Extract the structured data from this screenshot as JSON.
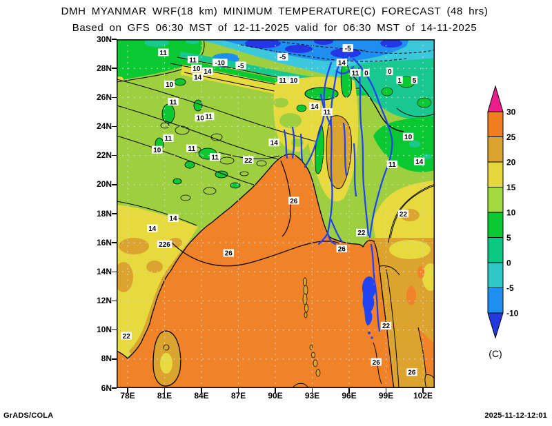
{
  "header": {
    "title": "DMH MYANMAR WRF(18 km) MINIMUM TEMPERATURE(C) FORECAST (48 hrs)",
    "subtitle": "Based on GFS 06:30 MST of 12-11-2025 valid for 06:30 MST of 14-11-2025"
  },
  "footer": {
    "credit": "GrADS/COLA",
    "timestamp": "2025-11-12-12:01"
  },
  "chart_data": {
    "type": "heatmap",
    "title": "DMH MYANMAR WRF(18 km) MINIMUM TEMPERATURE(C) FORECAST (48 hrs)",
    "subtitle": "Based on GFS 06:30 MST of 12-11-2025 valid for 06:30 MST of 14-11-2025",
    "units": "C",
    "grid": {
      "style": "dotted",
      "lon_step_deg": 3,
      "lat_step_deg": 2
    },
    "x_axis": {
      "ticks": [
        "78E",
        "81E",
        "84E",
        "87E",
        "90E",
        "93E",
        "96E",
        "99E",
        "102E"
      ],
      "range_lon": [
        77.1,
        103.3
      ]
    },
    "y_axis": {
      "ticks": [
        "30N",
        "28N",
        "26N",
        "24N",
        "22N",
        "20N",
        "18N",
        "16N",
        "14N",
        "12N",
        "10N",
        "8N",
        "6N"
      ],
      "range_lat": [
        6,
        30
      ]
    },
    "colorbar": {
      "unit_label": "(C)",
      "levels": [
        "30",
        "25",
        "20",
        "15",
        "10",
        "5",
        "0",
        "-5",
        "-10"
      ],
      "colors_top_to_bottom": [
        "#ED1E8C",
        "#F07D20",
        "#DCA42E",
        "#E6D83C",
        "#A2DA3F",
        "#0AC832",
        "#0AC882",
        "#2EC8C8",
        "#1E8FF0",
        "#2339E0"
      ],
      "meaning": "minimum temperature in degrees C; pink >30, dark blue <-10"
    },
    "contour_labels_c": [
      {
        "value": "11",
        "lon": 80.9,
        "lat": 29.1
      },
      {
        "value": "-10",
        "lon": 85.5,
        "lat": 28.4
      },
      {
        "value": "-5",
        "lon": 87.2,
        "lat": 28.2
      },
      {
        "value": "-5",
        "lon": 90.6,
        "lat": 28.8
      },
      {
        "value": "-5",
        "lon": 95.9,
        "lat": 29.4
      },
      {
        "value": "14",
        "lon": 95.4,
        "lat": 28.4
      },
      {
        "value": "11",
        "lon": 90.6,
        "lat": 27.2
      },
      {
        "value": "10",
        "lon": 91.5,
        "lat": 27.2
      },
      {
        "value": "11",
        "lon": 96.5,
        "lat": 27.7
      },
      {
        "value": "0",
        "lon": 97.4,
        "lat": 27.7
      },
      {
        "value": "0",
        "lon": 99.3,
        "lat": 27.8
      },
      {
        "value": "1",
        "lon": 100.1,
        "lat": 27.2
      },
      {
        "value": "5",
        "lon": 101.3,
        "lat": 27.2
      },
      {
        "value": "11",
        "lon": 83.3,
        "lat": 28.6
      },
      {
        "value": "10",
        "lon": 83.6,
        "lat": 28.0
      },
      {
        "value": "14",
        "lon": 83.7,
        "lat": 27.4
      },
      {
        "value": "14",
        "lon": 84.5,
        "lat": 27.8
      },
      {
        "value": "10",
        "lon": 81.4,
        "lat": 26.9
      },
      {
        "value": "11",
        "lon": 81.7,
        "lat": 25.7
      },
      {
        "value": "10",
        "lon": 83.9,
        "lat": 24.6
      },
      {
        "value": "11",
        "lon": 84.6,
        "lat": 24.7
      },
      {
        "value": "11",
        "lon": 81.3,
        "lat": 23.2
      },
      {
        "value": "10",
        "lon": 80.4,
        "lat": 22.4
      },
      {
        "value": "11",
        "lon": 83.2,
        "lat": 22.5
      },
      {
        "value": "11",
        "lon": 85.1,
        "lat": 21.9
      },
      {
        "value": "14",
        "lon": 93.2,
        "lat": 25.4
      },
      {
        "value": "11",
        "lon": 94.2,
        "lat": 25.0
      },
      {
        "value": "14",
        "lon": 89.9,
        "lat": 22.9
      },
      {
        "value": "22",
        "lon": 87.8,
        "lat": 21.7
      },
      {
        "value": "26",
        "lon": 91.5,
        "lat": 18.9
      },
      {
        "value": "14",
        "lon": 81.7,
        "lat": 17.7
      },
      {
        "value": "14",
        "lon": 80.0,
        "lat": 17.0
      },
      {
        "value": "226",
        "lon": 81.0,
        "lat": 15.9
      },
      {
        "value": "26",
        "lon": 86.2,
        "lat": 15.3
      },
      {
        "value": "10",
        "lon": 100.8,
        "lat": 23.3
      },
      {
        "value": "11",
        "lon": 99.5,
        "lat": 21.4
      },
      {
        "value": "14",
        "lon": 101.7,
        "lat": 21.6
      },
      {
        "value": "22",
        "lon": 100.4,
        "lat": 18.0
      },
      {
        "value": "22",
        "lon": 97.0,
        "lat": 16.7
      },
      {
        "value": "26",
        "lon": 95.4,
        "lat": 15.6
      },
      {
        "value": "22",
        "lon": 77.9,
        "lat": 9.6
      },
      {
        "value": "22",
        "lon": 99.0,
        "lat": 10.3
      },
      {
        "value": "26",
        "lon": 98.2,
        "lat": 7.8
      },
      {
        "value": "26",
        "lon": 101.1,
        "lat": 7.1
      }
    ]
  }
}
